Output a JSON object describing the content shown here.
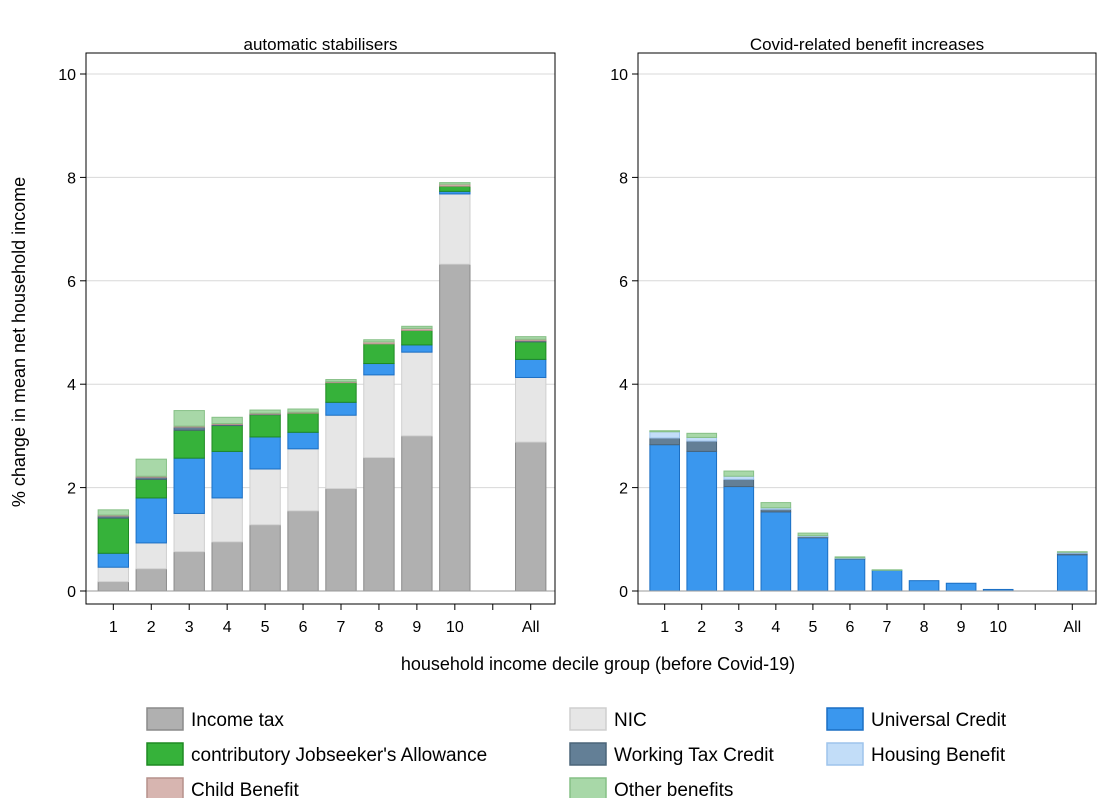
{
  "chart_data": {
    "type": "bar",
    "stacked": true,
    "ylabel": "% change in mean net household income",
    "xlabel": "household income decile group (before Covid-19)",
    "categories": [
      "1",
      "2",
      "3",
      "4",
      "5",
      "6",
      "7",
      "8",
      "9",
      "10",
      "All"
    ],
    "ylim": [
      0,
      10
    ],
    "yticks": [
      0,
      2,
      4,
      6,
      8,
      10
    ],
    "grid": true,
    "legend_position": "bottom",
    "legend": [
      {
        "name": "Income tax",
        "color": "#b0b0b0",
        "border": "#8a8a8a"
      },
      {
        "name": "NIC",
        "color": "#e6e6e6",
        "border": "#cfcfcf"
      },
      {
        "name": "Universal Credit",
        "color": "#3a97ee",
        "border": "#1b6fc4"
      },
      {
        "name": "contributory Jobseeker's Allowance",
        "color": "#36b23a",
        "border": "#1e8a22"
      },
      {
        "name": "Working Tax Credit",
        "color": "#637f96",
        "border": "#4b6579"
      },
      {
        "name": "Housing Benefit",
        "color": "#c2ddf8",
        "border": "#9ec4ec"
      },
      {
        "name": "Child Benefit",
        "color": "#d7b5b0",
        "border": "#b5918b"
      },
      {
        "name": "Other benefits",
        "color": "#a8d8a8",
        "border": "#86c086"
      }
    ],
    "panels": [
      {
        "title": "automatic stabilisers",
        "series": [
          {
            "name": "Income tax",
            "values": [
              0.18,
              0.43,
              0.76,
              0.95,
              1.28,
              1.55,
              1.98,
              2.58,
              3.0,
              6.32,
              2.88
            ]
          },
          {
            "name": "NIC",
            "values": [
              0.28,
              0.5,
              0.74,
              0.85,
              1.08,
              1.2,
              1.42,
              1.6,
              1.62,
              1.36,
              1.25
            ]
          },
          {
            "name": "Universal Credit",
            "values": [
              0.27,
              0.87,
              1.07,
              0.9,
              0.62,
              0.32,
              0.25,
              0.22,
              0.14,
              0.05,
              0.35
            ]
          },
          {
            "name": "contributory Jobseeker's Allowance",
            "values": [
              0.68,
              0.36,
              0.54,
              0.5,
              0.43,
              0.37,
              0.38,
              0.38,
              0.28,
              0.1,
              0.34
            ]
          },
          {
            "name": "Working Tax Credit",
            "values": [
              0.04,
              0.04,
              0.06,
              0.02,
              0.01,
              0.0,
              0.0,
              0.0,
              0.0,
              0.0,
              0.02
            ]
          },
          {
            "name": "Housing Benefit",
            "values": [
              0.0,
              0.0,
              0.0,
              0.0,
              0.0,
              0.0,
              0.0,
              0.0,
              0.0,
              0.0,
              0.0
            ]
          },
          {
            "name": "Child Benefit",
            "values": [
              0.02,
              0.02,
              0.02,
              0.02,
              0.02,
              0.02,
              0.02,
              0.04,
              0.04,
              0.04,
              0.03
            ]
          },
          {
            "name": "Other benefits",
            "values": [
              0.1,
              0.33,
              0.3,
              0.12,
              0.06,
              0.06,
              0.04,
              0.04,
              0.04,
              0.03,
              0.05
            ]
          }
        ]
      },
      {
        "title": "Covid-related benefit increases",
        "series": [
          {
            "name": "Income tax",
            "values": [
              0,
              0,
              0,
              0,
              0,
              0,
              0,
              0,
              0,
              0,
              0
            ]
          },
          {
            "name": "NIC",
            "values": [
              0,
              0,
              0,
              0,
              0,
              0,
              0,
              0,
              0,
              0,
              0
            ]
          },
          {
            "name": "Universal Credit",
            "values": [
              2.83,
              2.7,
              2.02,
              1.53,
              1.03,
              0.62,
              0.4,
              0.2,
              0.15,
              0.03,
              0.7
            ]
          },
          {
            "name": "contributory Jobseeker's Allowance",
            "values": [
              0,
              0,
              0,
              0,
              0,
              0,
              0,
              0,
              0,
              0,
              0
            ]
          },
          {
            "name": "Working Tax Credit",
            "values": [
              0.13,
              0.2,
              0.14,
              0.05,
              0.02,
              0.01,
              0.0,
              0.0,
              0.0,
              0.0,
              0.03
            ]
          },
          {
            "name": "Housing Benefit",
            "values": [
              0.12,
              0.07,
              0.06,
              0.03,
              0.02,
              0.01,
              0.0,
              0.0,
              0.0,
              0.0,
              0.02
            ]
          },
          {
            "name": "Child Benefit",
            "values": [
              0.0,
              0.0,
              0.0,
              0.0,
              0.0,
              0.0,
              0.0,
              0.0,
              0.0,
              0.0,
              0.0
            ]
          },
          {
            "name": "Other benefits",
            "values": [
              0.02,
              0.08,
              0.1,
              0.1,
              0.05,
              0.02,
              0.01,
              0.0,
              0.0,
              0.0,
              0.01
            ]
          }
        ]
      }
    ]
  }
}
